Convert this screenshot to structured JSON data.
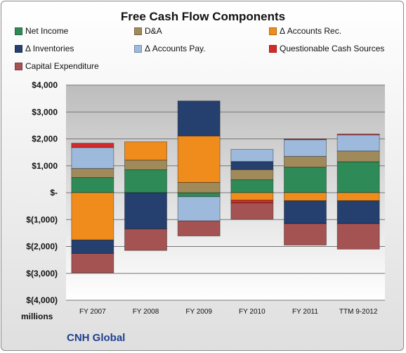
{
  "chart_data": {
    "type": "bar",
    "stacked": true,
    "title": "Free Cash Flow Components",
    "categories": [
      "FY 2007",
      "FY 2008",
      "FY 2009",
      "FY 2010",
      "FY 2011",
      "TTM 9-2012"
    ],
    "ylim": [
      -4000,
      4000
    ],
    "ytick_labels": [
      "$4,000",
      "$3,000",
      "$2,000",
      "$1,000",
      "$-",
      "$(1,000)",
      "$(2,000)",
      "$(3,000)",
      "$(4,000)"
    ],
    "y_unit_label": "millions",
    "grid": true,
    "legend_position": "top",
    "series": [
      {
        "name": "Net Income",
        "color": "#2e8b57",
        "values": [
          560,
          850,
          -150,
          480,
          950,
          1150
        ]
      },
      {
        "name": "D&A",
        "color": "#a08a5a",
        "values": [
          340,
          360,
          380,
          380,
          400,
          400
        ]
      },
      {
        "name": "Δ Accounts Rec.",
        "color": "#f08c1c",
        "values": [
          -1760,
          680,
          1730,
          -280,
          -300,
          -300
        ]
      },
      {
        "name": "Δ Inventories",
        "color": "#253f6e",
        "values": [
          -500,
          -1350,
          1300,
          300,
          -850,
          -850
        ]
      },
      {
        "name": "Δ Accounts Pay.",
        "color": "#9db9dc",
        "values": [
          780,
          0,
          -900,
          450,
          620,
          600
        ]
      },
      {
        "name": "Questionable Cash Sources",
        "color": "#d42a2a",
        "values": [
          160,
          0,
          0,
          -100,
          30,
          30
        ]
      },
      {
        "name": "Capital Expenditure",
        "color": "#a55252",
        "values": [
          -720,
          -800,
          -560,
          -600,
          -800,
          -950
        ]
      }
    ]
  },
  "footer": {
    "company": "CNH Global"
  }
}
